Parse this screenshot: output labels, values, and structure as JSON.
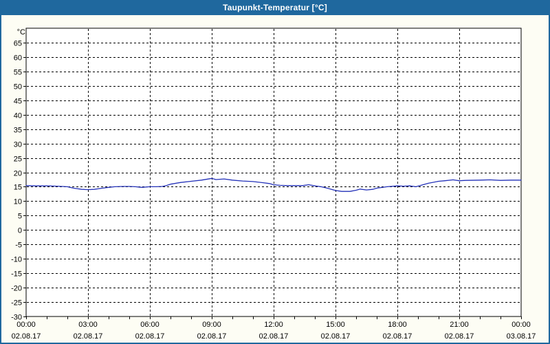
{
  "window": {
    "title": "Taupunkt-Temperatur [°C]"
  },
  "colors": {
    "titlebar_bg": "#1F689E",
    "title_text": "#FFFFFF",
    "window_bg": "#FDFDF4",
    "frame_border": "#1F689E",
    "plot_bg": "#FFFFFF",
    "plot_border": "#000000",
    "grid": "#000000",
    "axis_text": "#000000",
    "series": "#2230B8"
  },
  "chart_data": {
    "type": "line",
    "title": "Taupunkt-Temperatur [°C]",
    "legend": "none",
    "grid": "dashed",
    "y_axis": {
      "unit_label": "°C",
      "min": -30,
      "max": 65,
      "step": 5,
      "top_padding_value": 70,
      "tick_labels": [
        65,
        60,
        55,
        50,
        45,
        40,
        35,
        30,
        25,
        20,
        15,
        10,
        5,
        0,
        -5,
        -10,
        -15,
        -20,
        -25,
        -30
      ]
    },
    "x_axis": {
      "start_hour": 0,
      "end_hour": 24,
      "major_step_hours": 3,
      "minor_step_hours": 1,
      "major_labels": [
        {
          "time": "00:00",
          "date": "02.08.17"
        },
        {
          "time": "03:00",
          "date": "02.08.17"
        },
        {
          "time": "06:00",
          "date": "02.08.17"
        },
        {
          "time": "09:00",
          "date": "02.08.17"
        },
        {
          "time": "12:00",
          "date": "02.08.17"
        },
        {
          "time": "15:00",
          "date": "02.08.17"
        },
        {
          "time": "18:00",
          "date": "02.08.17"
        },
        {
          "time": "21:00",
          "date": "02.08.17"
        },
        {
          "time": "00:00",
          "date": "03.08.17"
        }
      ]
    },
    "series": [
      {
        "name": "Taupunkt-Temperatur",
        "color": "#2230B8",
        "points": [
          [
            0,
            15.4
          ],
          [
            0.5,
            15.3
          ],
          [
            1,
            15.3
          ],
          [
            1.5,
            15.2
          ],
          [
            2,
            15.0
          ],
          [
            2.3,
            14.5
          ],
          [
            2.7,
            14.1
          ],
          [
            3,
            14.0
          ],
          [
            3.3,
            14.1
          ],
          [
            3.7,
            14.5
          ],
          [
            4,
            14.8
          ],
          [
            4.3,
            15.0
          ],
          [
            4.7,
            15.1
          ],
          [
            5,
            15.1
          ],
          [
            5.3,
            15.0
          ],
          [
            5.6,
            14.8
          ],
          [
            6,
            15.0
          ],
          [
            6.3,
            15.0
          ],
          [
            6.6,
            15.1
          ],
          [
            6.8,
            15.4
          ],
          [
            7,
            15.9
          ],
          [
            7.5,
            16.5
          ],
          [
            8,
            16.9
          ],
          [
            8.5,
            17.3
          ],
          [
            9,
            17.9
          ],
          [
            9.2,
            17.5
          ],
          [
            9.6,
            17.7
          ],
          [
            10,
            17.3
          ],
          [
            10.5,
            17.0
          ],
          [
            11,
            16.8
          ],
          [
            11.5,
            16.4
          ],
          [
            11.8,
            16.1
          ],
          [
            12,
            15.7
          ],
          [
            12.3,
            15.5
          ],
          [
            12.7,
            15.4
          ],
          [
            13,
            15.4
          ],
          [
            13.4,
            15.4
          ],
          [
            13.7,
            15.7
          ],
          [
            14,
            15.3
          ],
          [
            14.3,
            15.0
          ],
          [
            14.6,
            14.5
          ],
          [
            15,
            13.7
          ],
          [
            15.3,
            13.4
          ],
          [
            15.7,
            13.4
          ],
          [
            16,
            13.8
          ],
          [
            16.2,
            14.2
          ],
          [
            16.5,
            13.9
          ],
          [
            16.8,
            14.1
          ],
          [
            17,
            14.5
          ],
          [
            17.5,
            15.0
          ],
          [
            18,
            15.3
          ],
          [
            18.3,
            15.2
          ],
          [
            18.6,
            15.3
          ],
          [
            18.9,
            15.0
          ],
          [
            19.2,
            15.6
          ],
          [
            19.5,
            16.2
          ],
          [
            20,
            16.9
          ],
          [
            20.3,
            17.1
          ],
          [
            20.7,
            17.4
          ],
          [
            21,
            17.1
          ],
          [
            21.3,
            17.2
          ],
          [
            22,
            17.3
          ],
          [
            22.5,
            17.4
          ],
          [
            23,
            17.2
          ],
          [
            23.5,
            17.3
          ],
          [
            24,
            17.3
          ]
        ]
      }
    ]
  }
}
